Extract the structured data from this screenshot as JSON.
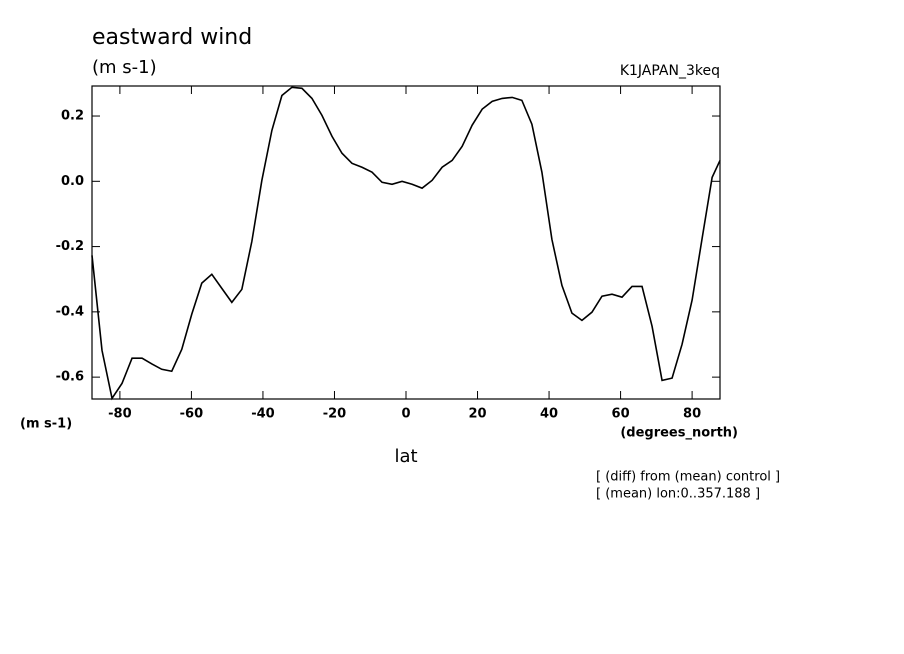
{
  "chart_data": {
    "type": "line",
    "title": "eastward wind",
    "subtitle": "(m s-1)",
    "experiment": "K1JAPAN_3keq",
    "y_unit_label": "(m s-1)",
    "x_unit_label": "(degrees_north)",
    "xlabel": "lat",
    "notes": [
      "[ (diff) from (mean) control ]",
      "[ (mean) lon:0..357.188 ]"
    ],
    "color": "#000000",
    "xlim": [
      -87.8,
      87.8
    ],
    "ylim": [
      -0.667,
      0.292
    ],
    "xticks": [
      -80,
      -60,
      -40,
      -20,
      0,
      20,
      40,
      60,
      80
    ],
    "yticks": [
      -0.6,
      -0.4,
      -0.2,
      {
        "value": 0,
        "label": "0.0"
      },
      0.2
    ],
    "x": [
      -87.8,
      -85.0,
      -82.2,
      -79.4,
      -76.6,
      -73.8,
      -71.0,
      -68.3,
      -65.5,
      -62.7,
      -59.9,
      -57.1,
      -54.3,
      -51.5,
      -48.7,
      -45.9,
      -43.1,
      -40.3,
      -37.5,
      -34.7,
      -31.9,
      -29.1,
      -26.3,
      -23.5,
      -20.7,
      -17.9,
      -15.1,
      -12.3,
      -9.5,
      -6.7,
      -3.9,
      -1.1,
      1.7,
      4.5,
      7.3,
      10.1,
      12.9,
      15.7,
      18.5,
      21.3,
      24.1,
      26.9,
      29.7,
      32.4,
      35.2,
      38.0,
      40.8,
      43.6,
      46.4,
      49.2,
      52.0,
      54.8,
      57.6,
      60.4,
      63.2,
      66.0,
      68.8,
      71.6,
      74.4,
      77.2,
      80.0,
      82.8,
      85.6,
      87.8
    ],
    "values": [
      -0.227,
      -0.518,
      -0.665,
      -0.619,
      -0.542,
      -0.542,
      -0.56,
      -0.576,
      -0.582,
      -0.515,
      -0.407,
      -0.312,
      -0.285,
      -0.328,
      -0.371,
      -0.331,
      -0.184,
      0.003,
      0.156,
      0.263,
      0.288,
      0.285,
      0.254,
      0.202,
      0.138,
      0.086,
      0.055,
      0.043,
      0.028,
      -0.003,
      -0.009,
      0.0,
      -0.009,
      -0.021,
      0.003,
      0.043,
      0.064,
      0.107,
      0.172,
      0.221,
      0.245,
      0.254,
      0.257,
      0.248,
      0.175,
      0.028,
      -0.178,
      -0.319,
      -0.404,
      -0.426,
      -0.401,
      -0.352,
      -0.346,
      -0.355,
      -0.322,
      -0.322,
      -0.444,
      -0.61,
      -0.603,
      -0.499,
      -0.364,
      -0.175,
      0.012,
      0.064
    ]
  }
}
